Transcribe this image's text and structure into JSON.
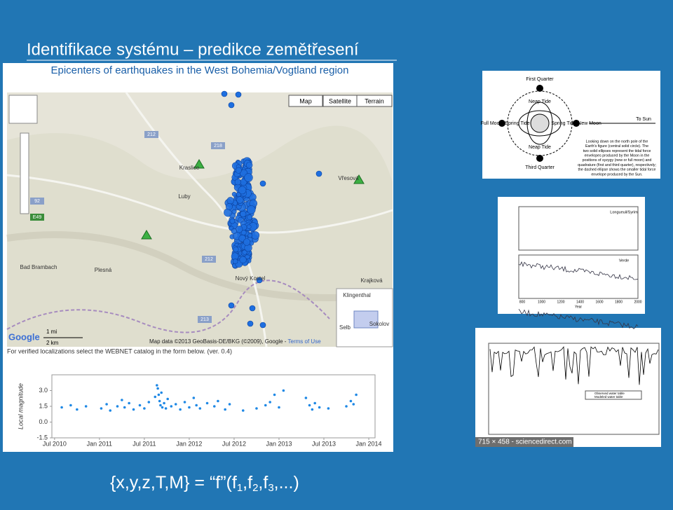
{
  "title": "Identifikace systému – predikce zemětřesení",
  "map": {
    "title": "Epicenters of earthquakes in the West Bohemia/Vogtland region",
    "buttons": [
      "Map",
      "Satellite",
      "Terrain"
    ],
    "places": [
      "Luby",
      "Plesná",
      "Bad Brambach",
      "Nový Kostel",
      "Kraslice",
      "Vřesová",
      "Krajková",
      "Klingenthal",
      "Selb",
      "Sokolov"
    ],
    "roads": [
      "212",
      "218",
      "92",
      "E49",
      "213",
      "212"
    ],
    "scale": [
      "1 mi",
      "2 km"
    ],
    "google": "Google",
    "attribution": "Map data ©2013 GeoBasis-DE/BKG (©2009), Google - ",
    "terms": "Terms of Use",
    "note": "For verified localizations select the WEBNET catalog in the form below. (ver. 0.4)"
  },
  "chart_data": {
    "type": "scatter",
    "ylabel": "Local magnitude",
    "color": "#1e88e5",
    "xlim": [
      2010.47,
      2014.07
    ],
    "xticks": [
      {
        "value": 2010.5,
        "label": "Jul 2010"
      },
      {
        "value": 2011,
        "label": "Jan 2011"
      },
      {
        "value": 2011.5,
        "label": "Jul 2011"
      },
      {
        "value": 2012,
        "label": "Jan 2012"
      },
      {
        "value": 2012.5,
        "label": "Jul 2012"
      },
      {
        "value": 2013,
        "label": "Jan 2013"
      },
      {
        "value": 2013.5,
        "label": "Jul 2013"
      },
      {
        "value": 2014,
        "label": "Jan 2014"
      }
    ],
    "ylim": [
      -1.5,
      4.5
    ],
    "yticks": [
      -1.5,
      {
        "value": 0,
        "label": "0.0"
      },
      1.5,
      {
        "value": 3,
        "label": "3.0"
      }
    ],
    "x": [
      2010.58,
      2010.68,
      2010.75,
      2010.85,
      2011.02,
      2011.08,
      2011.12,
      2011.2,
      2011.25,
      2011.28,
      2011.33,
      2011.38,
      2011.45,
      2011.5,
      2011.55,
      2011.62,
      2011.64,
      2011.65,
      2011.66,
      2011.67,
      2011.68,
      2011.69,
      2011.7,
      2011.72,
      2011.74,
      2011.76,
      2011.8,
      2011.85,
      2011.9,
      2011.95,
      2012.0,
      2012.05,
      2012.08,
      2012.12,
      2012.2,
      2012.28,
      2012.32,
      2012.4,
      2012.45,
      2012.6,
      2012.75,
      2012.85,
      2012.9,
      2012.95,
      2013.0,
      2013.05,
      2013.3,
      2013.34,
      2013.37,
      2013.4,
      2013.45,
      2013.55,
      2013.75,
      2013.8,
      2013.83,
      2013.86
    ],
    "values": [
      1.4,
      1.6,
      1.2,
      1.5,
      1.3,
      1.7,
      1.1,
      1.5,
      2.1,
      1.4,
      1.8,
      1.2,
      1.6,
      1.3,
      1.9,
      2.4,
      3.5,
      3.2,
      2.6,
      2.0,
      1.6,
      2.8,
      1.4,
      1.8,
      1.3,
      2.2,
      1.5,
      1.7,
      1.2,
      1.9,
      1.4,
      2.3,
      1.6,
      1.3,
      1.8,
      1.5,
      2.0,
      1.2,
      1.7,
      1.1,
      1.3,
      1.6,
      1.9,
      2.6,
      1.4,
      3.0,
      2.3,
      1.6,
      1.2,
      1.8,
      1.4,
      1.3,
      1.5,
      2.0,
      1.7,
      2.6
    ]
  },
  "figures": {
    "moon": {
      "labels": [
        "First Quarter",
        "Neap Tide",
        "Full Moon",
        "Spring Tide",
        "Spring Tide",
        "New Moon",
        "To Sun",
        "Neap Tide",
        "Third Quarter"
      ],
      "caption": [
        "Looking down on the north pole of the",
        "Earth's figure (central solid circle). The",
        "two solid ellipses represent the tidal force",
        "envelopes produced by the Moon in the",
        "positions of syzygy (new or full moon) and",
        "quadrature (first and third quarter), respectively;",
        "the dashed ellipse shows the smaller tidal force",
        "envelope produced by the Sun."
      ]
    },
    "temperature": {
      "labels": [
        "Longueuil/Syrim",
        "Verde"
      ],
      "xticks": [
        800,
        1000,
        1200,
        1400,
        1600,
        1800,
        2000
      ],
      "xlabel": "Year"
    },
    "water": {
      "legend": [
        "Observed water table",
        "Modeled water table"
      ],
      "badge": "715 × 458 - sciencedirect.com"
    }
  },
  "formula": [
    {
      "text": "{x,y,z,T,M} = “f”(f"
    },
    {
      "text": "1",
      "sub": true
    },
    {
      "text": ",f"
    },
    {
      "text": "2",
      "sub": true
    },
    {
      "text": ",f"
    },
    {
      "text": "3",
      "sub": true
    },
    {
      "text": ",...)"
    }
  ]
}
